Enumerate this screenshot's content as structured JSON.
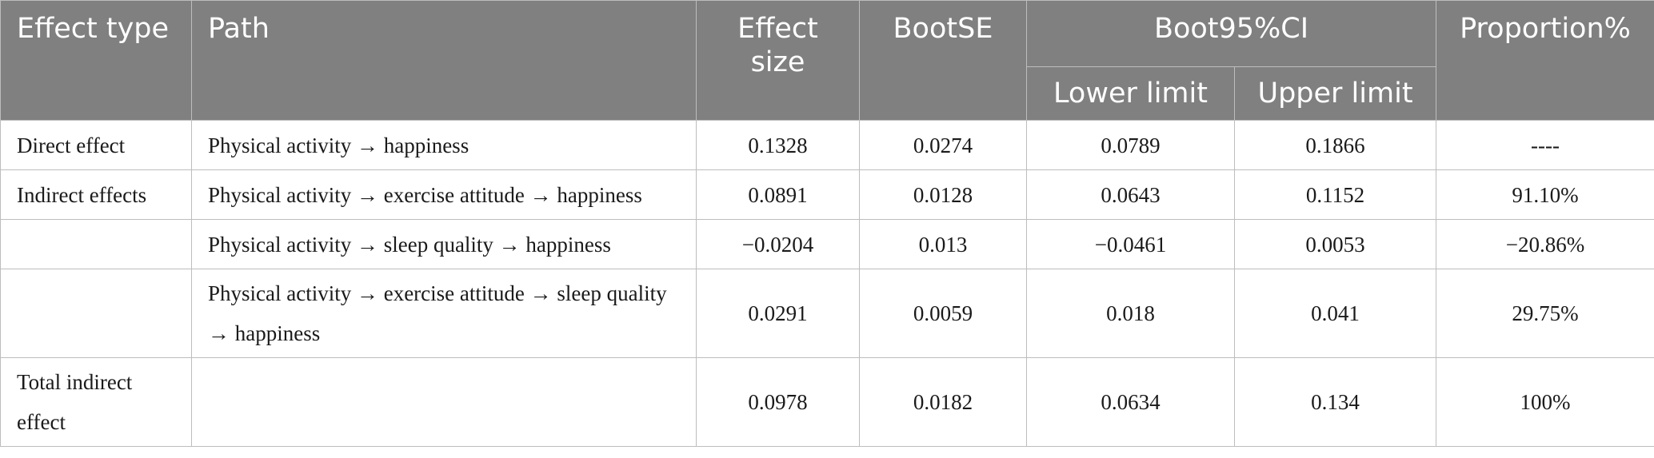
{
  "header": {
    "effect_type": "Effect type",
    "path": "Path",
    "effect_size": "Effect size",
    "bootse": "BootSE",
    "boot95ci": "Boot95%CI",
    "lower_limit": "Lower limit",
    "upper_limit": "Upper limit",
    "proportion": "Proportion%"
  },
  "rows": [
    {
      "effect_type": "Direct effect",
      "path": "Physical activity → happiness",
      "effect_size": "0.1328",
      "bootse": "0.0274",
      "lower": "0.0789",
      "upper": "0.1866",
      "proportion": "----"
    },
    {
      "effect_type": "Indirect effects",
      "path": "Physical activity → exercise attitude → happiness",
      "effect_size": "0.0891",
      "bootse": "0.0128",
      "lower": "0.0643",
      "upper": "0.1152",
      "proportion": "91.10%"
    },
    {
      "effect_type": "",
      "path": "Physical activity → sleep quality → happiness",
      "effect_size": "−0.0204",
      "bootse": "0.013",
      "lower": "−0.0461",
      "upper": "0.0053",
      "proportion": "−20.86%"
    },
    {
      "effect_type": "",
      "path": "Physical activity → exercise attitude → sleep quality → happiness",
      "effect_size": "0.0291",
      "bootse": "0.0059",
      "lower": "0.018",
      "upper": "0.041",
      "proportion": "29.75%"
    },
    {
      "effect_type": "Total indirect effect",
      "path": "",
      "effect_size": "0.0978",
      "bootse": "0.0182",
      "lower": "0.0634",
      "upper": "0.134",
      "proportion": "100%"
    }
  ]
}
